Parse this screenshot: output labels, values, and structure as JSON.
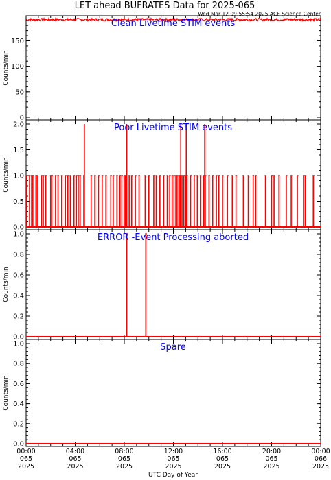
{
  "title": "LET ahead BUFRATES Data for 2025-065",
  "timestamp": "Wed Mar 12 09:55:54 2025 ACE Science Center",
  "xlabel": "UTC Day of Year",
  "colors": {
    "line": "#ff0000",
    "annotation": "#0000ff",
    "axis": "#000000"
  },
  "chart_data": [
    {
      "type": "line",
      "panel": "Clean Livetime STIM events",
      "title": "Clean Livetime STIM events",
      "ylabel": "Counts/min",
      "ylim": [
        0,
        195
      ],
      "yticks": [
        "0",
        "50",
        "100",
        "150"
      ],
      "xlim": [
        0,
        24
      ],
      "series": [
        {
          "noisy_level": 191,
          "noise_range": [
            189,
            194
          ]
        }
      ]
    },
    {
      "type": "line",
      "panel": "Poor Livetime STIM events",
      "title": "Poor Livetime STIM events",
      "ylabel": "Counts/min",
      "ylim": [
        0,
        2
      ],
      "yticks": [
        "0.0",
        "0.5",
        "1.0",
        "1.5",
        "2.0"
      ],
      "xlim": [
        0,
        24
      ],
      "series": [
        {
          "baseline": 0,
          "spikes_1": [
            0.05,
            0.28,
            0.45,
            0.55,
            0.8,
            0.9,
            1.25,
            1.4,
            1.6,
            2.0,
            2.1,
            2.4,
            2.6,
            2.9,
            3.2,
            3.4,
            3.6,
            3.9,
            4.1,
            4.25,
            4.4,
            4.7,
            5.3,
            5.6,
            5.9,
            6.2,
            6.5,
            6.9,
            7.1,
            7.4,
            7.65,
            7.8,
            8.0,
            8.1,
            8.4,
            8.6,
            8.9,
            9.2,
            9.7,
            10.0,
            10.4,
            10.6,
            10.9,
            11.2,
            11.5,
            11.7,
            11.9,
            12.05,
            12.2,
            12.3,
            12.45,
            12.55,
            12.7,
            12.85,
            13.0,
            13.1,
            13.4,
            13.7,
            13.95,
            14.2,
            14.45,
            14.6,
            14.9,
            15.2,
            15.5,
            15.7,
            16.0,
            16.4,
            16.8,
            17.1,
            17.7,
            18.1,
            18.5,
            18.7,
            19.5,
            20.0,
            20.2,
            20.6,
            21.2,
            21.6,
            22.1,
            22.6,
            22.75,
            23.4
          ],
          "spikes_2": [
            4.75,
            8.2,
            12.6,
            13.05,
            14.55
          ]
        }
      ]
    },
    {
      "type": "line",
      "panel": "ERROR -Event Processing aborted",
      "title": "ERROR -Event Processing aborted",
      "ylabel": "Counts/min",
      "ylim": [
        0,
        1
      ],
      "yticks": [
        "0.0",
        "0.2",
        "0.4",
        "0.6",
        "0.8",
        "1.0"
      ],
      "xlim": [
        0,
        24
      ],
      "series": [
        {
          "baseline": 0,
          "spikes_1": [
            8.2,
            9.75
          ]
        }
      ]
    },
    {
      "type": "line",
      "panel": "Spare",
      "title": "Spare",
      "ylabel": "Counts/min",
      "ylim": [
        0,
        1
      ],
      "yticks": [
        "0.0",
        "0.2",
        "0.4",
        "0.6",
        "0.8",
        "1.0"
      ],
      "xlim": [
        0,
        24
      ],
      "series": [
        {
          "baseline": 0
        }
      ]
    }
  ],
  "xticks": [
    {
      "time": "00:00",
      "doy": "065",
      "year": "2025",
      "hour": 0
    },
    {
      "time": "04:00",
      "doy": "065",
      "year": "2025",
      "hour": 4
    },
    {
      "time": "08:00",
      "doy": "065",
      "year": "2025",
      "hour": 8
    },
    {
      "time": "12:00",
      "doy": "065",
      "year": "2025",
      "hour": 12
    },
    {
      "time": "16:00",
      "doy": "065",
      "year": "2025",
      "hour": 16
    },
    {
      "time": "20:00",
      "doy": "065",
      "year": "2025",
      "hour": 20
    },
    {
      "time": "00:00",
      "doy": "066",
      "year": "2025",
      "hour": 24
    }
  ]
}
